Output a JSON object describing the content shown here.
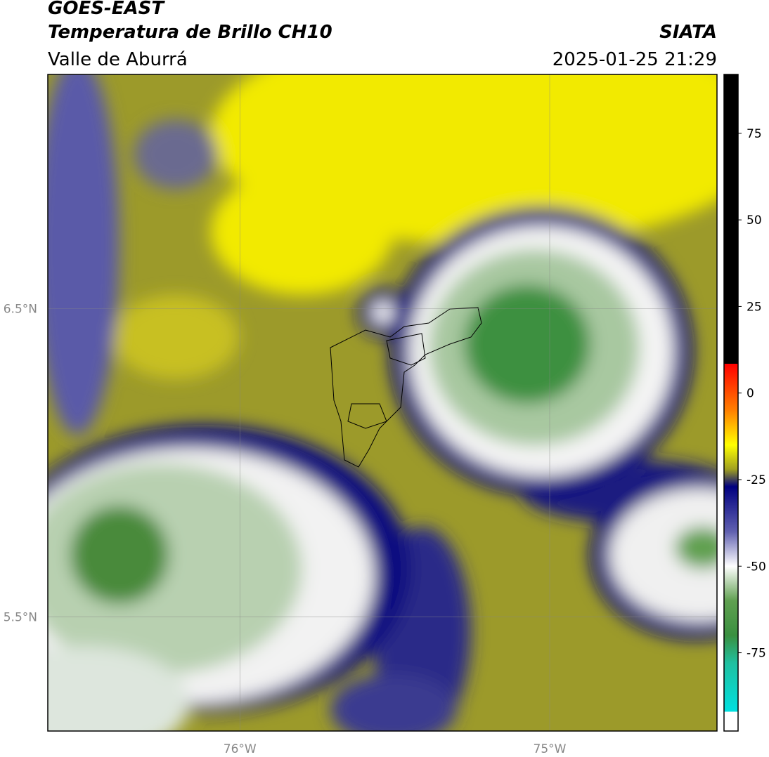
{
  "header": {
    "satellite": "GOES-EAST",
    "product": "Temperatura de Brillo CH10",
    "region": "Valle de Aburrá",
    "source": "SIATA",
    "datetime": "2025-01-25 21:29"
  },
  "map": {
    "xlim": [
      -76.62,
      -74.46
    ],
    "ylim": [
      5.13,
      7.26
    ],
    "xticks": [
      {
        "value": -76,
        "label": "76°W"
      },
      {
        "value": -75,
        "label": "75°W"
      }
    ],
    "yticks": [
      {
        "value": 6.5,
        "label": "6.5°N"
      },
      {
        "value": 5.5,
        "label": "5.5°N"
      }
    ]
  },
  "colorbar": {
    "lim": [
      -97.6,
      92
    ],
    "ticks": [
      -75,
      -50,
      -25,
      0,
      25,
      50,
      75
    ],
    "stops": [
      {
        "value": 92,
        "color": "#000000"
      },
      {
        "value": 8.5,
        "color": "#000000"
      },
      {
        "value": 8.5,
        "color": "#ff0000"
      },
      {
        "value": -5,
        "color": "#ff8000"
      },
      {
        "value": -15,
        "color": "#ffff00"
      },
      {
        "value": -22,
        "color": "#a0a020"
      },
      {
        "value": -27,
        "color": "#000080"
      },
      {
        "value": -40,
        "color": "#6060b0"
      },
      {
        "value": -50,
        "color": "#ffffff"
      },
      {
        "value": -60,
        "color": "#60a050"
      },
      {
        "value": -70,
        "color": "#3a9040"
      },
      {
        "value": -78,
        "color": "#20c0a0"
      },
      {
        "value": -92,
        "color": "#00e0e0"
      },
      {
        "value": -92,
        "color": "#ffffff"
      },
      {
        "value": -97.6,
        "color": "#ffffff"
      }
    ]
  }
}
